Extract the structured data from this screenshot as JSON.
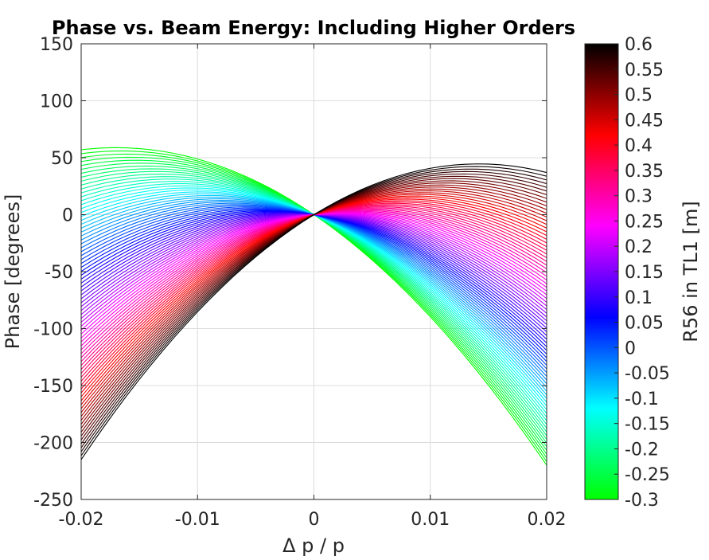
{
  "chart_data": {
    "type": "line",
    "title": "Phase vs. Beam Energy: Including Higher Orders",
    "xlabel": "Δ p / p",
    "ylabel": "Phase [degrees]",
    "xlim": [
      -0.02,
      0.02
    ],
    "ylim": [
      -250,
      150
    ],
    "xticks": [
      "-0.02",
      "-0.01",
      "0",
      "0.01",
      "0.02"
    ],
    "yticks": [
      "150",
      "100",
      "50",
      "0",
      "-50",
      "-100",
      "-150",
      "-200",
      "-250"
    ],
    "grid": true,
    "colorbar": {
      "label": "R56 in TL1 [m]",
      "range": [
        -0.3,
        0.6
      ],
      "ticks": [
        "0.6",
        "0.55",
        "0.5",
        "0.45",
        "0.4",
        "0.35",
        "0.3",
        "0.25",
        "0.2",
        "0.15",
        "0.1",
        "0.05",
        "0",
        "-0.05",
        "-0.1",
        "-0.15",
        "-0.2",
        "-0.25",
        "-0.3"
      ],
      "colormap": [
        "#00ff00",
        "#00ffff",
        "#0000ff",
        "#ff00ff",
        "#ff0000",
        "#000000"
      ]
    },
    "series_family": {
      "description_param": "R56",
      "count": 80,
      "x_points": [
        -0.02,
        -0.0175,
        -0.015,
        -0.0125,
        -0.01,
        -0.0075,
        -0.005,
        -0.0025,
        0,
        0.0025,
        0.005,
        0.0075,
        0.01,
        0.0125,
        0.015,
        0.0175,
        0.02
      ],
      "endpoints": {
        "R56_min": {
          "R56": -0.3,
          "y_at_xmin": 57,
          "y_max_left": 62,
          "y_at_xmax": -220
        },
        "R56_max": {
          "R56": 0.6,
          "y_at_xmin": -215,
          "y_max_right": 42,
          "y_at_xmax": 37
        }
      }
    }
  }
}
